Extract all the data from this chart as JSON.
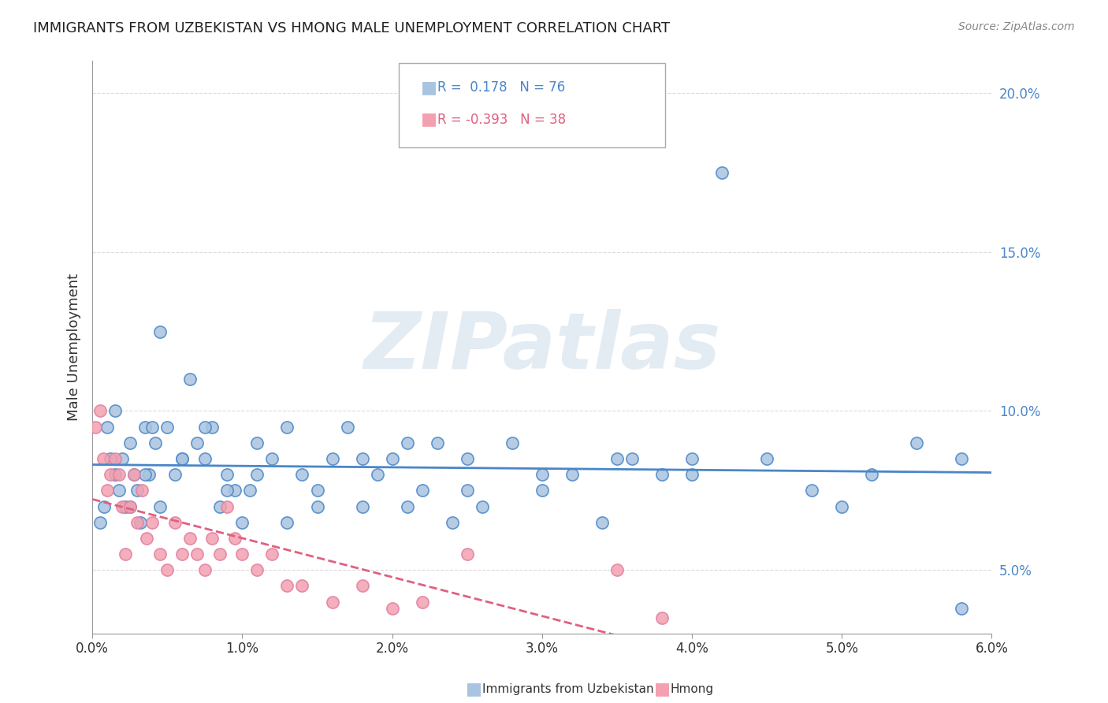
{
  "title": "IMMIGRANTS FROM UZBEKISTAN VS HMONG MALE UNEMPLOYMENT CORRELATION CHART",
  "source": "Source: ZipAtlas.com",
  "ylabel": "Male Unemployment",
  "xlabel": "",
  "x_min": 0.0,
  "x_max": 6.0,
  "y_min": 3.0,
  "y_max": 21.0,
  "x_ticks": [
    0.0,
    1.0,
    2.0,
    3.0,
    4.0,
    5.0,
    6.0
  ],
  "y_ticks": [
    5.0,
    10.0,
    15.0,
    20.0
  ],
  "R_uzbek": 0.178,
  "N_uzbek": 76,
  "R_hmong": -0.393,
  "N_hmong": 38,
  "color_uzbek": "#a8c4e0",
  "color_hmong": "#f4a0b0",
  "line_color_uzbek": "#4a86c8",
  "line_color_hmong": "#e06080",
  "watermark": "ZIPatlas",
  "watermark_color": "#c8d8e8",
  "uzbek_x": [
    0.05,
    0.08,
    0.1,
    0.12,
    0.15,
    0.18,
    0.2,
    0.22,
    0.25,
    0.28,
    0.3,
    0.32,
    0.35,
    0.38,
    0.4,
    0.42,
    0.45,
    0.5,
    0.55,
    0.6,
    0.65,
    0.7,
    0.75,
    0.8,
    0.85,
    0.9,
    0.95,
    1.0,
    1.05,
    1.1,
    1.2,
    1.3,
    1.4,
    1.5,
    1.6,
    1.7,
    1.8,
    1.9,
    2.0,
    2.1,
    2.2,
    2.3,
    2.4,
    2.5,
    2.6,
    2.8,
    3.0,
    3.2,
    3.4,
    3.6,
    3.8,
    4.0,
    4.2,
    4.5,
    4.8,
    5.0,
    5.2,
    5.5,
    5.8,
    0.15,
    0.25,
    0.35,
    0.45,
    0.6,
    0.75,
    0.9,
    1.1,
    1.3,
    1.5,
    1.8,
    2.1,
    2.5,
    3.0,
    3.5,
    4.0,
    5.8
  ],
  "uzbek_y": [
    6.5,
    7.0,
    9.5,
    8.5,
    8.0,
    7.5,
    8.5,
    7.0,
    9.0,
    8.0,
    7.5,
    6.5,
    9.5,
    8.0,
    9.5,
    9.0,
    12.5,
    9.5,
    8.0,
    8.5,
    11.0,
    9.0,
    8.5,
    9.5,
    7.0,
    8.0,
    7.5,
    6.5,
    7.5,
    9.0,
    8.5,
    6.5,
    8.0,
    7.5,
    8.5,
    9.5,
    7.0,
    8.0,
    8.5,
    7.0,
    7.5,
    9.0,
    6.5,
    8.5,
    7.0,
    9.0,
    7.5,
    8.0,
    6.5,
    8.5,
    8.0,
    8.5,
    17.5,
    8.5,
    7.5,
    7.0,
    8.0,
    9.0,
    3.8,
    10.0,
    7.0,
    8.0,
    7.0,
    8.5,
    9.5,
    7.5,
    8.0,
    9.5,
    7.0,
    8.5,
    9.0,
    7.5,
    8.0,
    8.5,
    8.0,
    8.5
  ],
  "hmong_x": [
    0.02,
    0.05,
    0.07,
    0.1,
    0.12,
    0.15,
    0.18,
    0.2,
    0.22,
    0.25,
    0.28,
    0.3,
    0.33,
    0.36,
    0.4,
    0.45,
    0.5,
    0.55,
    0.6,
    0.65,
    0.7,
    0.75,
    0.8,
    0.85,
    0.9,
    0.95,
    1.0,
    1.1,
    1.2,
    1.3,
    1.4,
    1.6,
    1.8,
    2.0,
    2.2,
    2.5,
    3.5,
    3.8
  ],
  "hmong_y": [
    9.5,
    10.0,
    8.5,
    7.5,
    8.0,
    8.5,
    8.0,
    7.0,
    5.5,
    7.0,
    8.0,
    6.5,
    7.5,
    6.0,
    6.5,
    5.5,
    5.0,
    6.5,
    5.5,
    6.0,
    5.5,
    5.0,
    6.0,
    5.5,
    7.0,
    6.0,
    5.5,
    5.0,
    5.5,
    4.5,
    4.5,
    4.0,
    4.5,
    3.8,
    4.0,
    5.5,
    5.0,
    3.5
  ]
}
